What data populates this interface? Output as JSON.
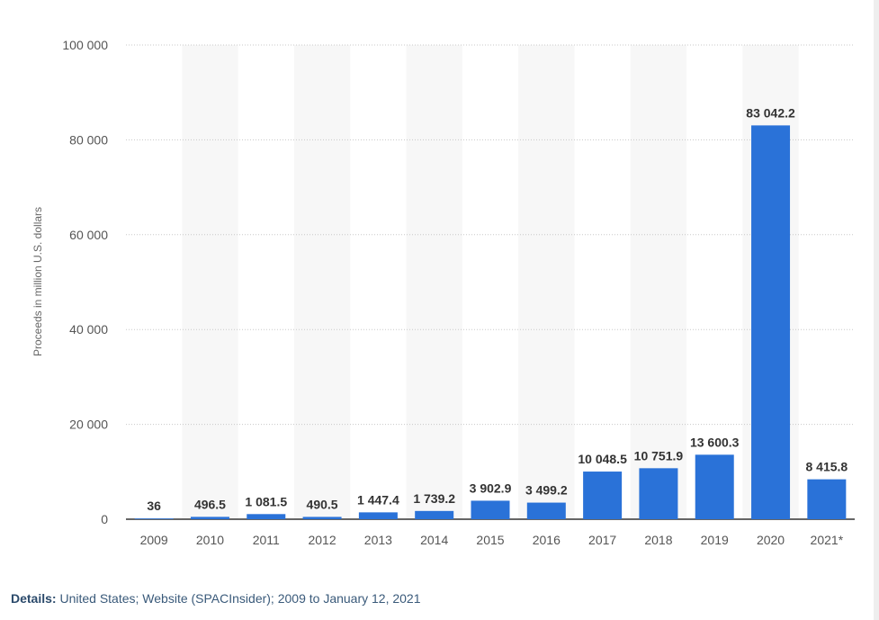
{
  "chart_data": {
    "type": "bar",
    "categories": [
      "2009",
      "2010",
      "2011",
      "2012",
      "2013",
      "2014",
      "2015",
      "2016",
      "2017",
      "2018",
      "2019",
      "2020",
      "2021*"
    ],
    "values": [
      36,
      496.5,
      1081.5,
      490.5,
      1447.4,
      1739.2,
      3902.9,
      3499.2,
      10048.5,
      10751.9,
      13600.3,
      83042.2,
      8415.8
    ],
    "value_labels": [
      "36",
      "496.5",
      "1 081.5",
      "490.5",
      "1 447.4",
      "1 739.2",
      "3 902.9",
      "3 499.2",
      "10 048.5",
      "10 751.9",
      "13 600.3",
      "83 042.2",
      "8 415.8"
    ],
    "title": "",
    "xlabel": "",
    "ylabel": "Proceeds in million U.S. dollars",
    "ylim": [
      0,
      100000
    ],
    "yticks": [
      0,
      20000,
      40000,
      60000,
      80000,
      100000
    ],
    "ytick_labels": [
      "0",
      "20 000",
      "40 000",
      "60 000",
      "80 000",
      "100 000"
    ],
    "grid": true,
    "bar_color": "#2a72d8"
  },
  "details": {
    "label": "Details:",
    "text": "United States; Website (SPACInsider); 2009 to January 12, 2021"
  }
}
